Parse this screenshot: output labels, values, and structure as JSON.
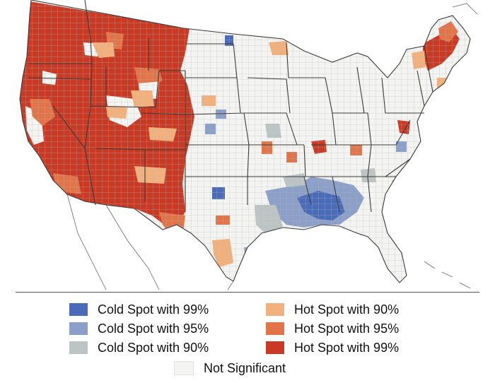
{
  "map": {
    "region": "Contiguous United States",
    "boundaries": [
      "state",
      "county"
    ],
    "land_color": "#f3f3f1",
    "border_color": "#7a7a7a"
  },
  "legend": {
    "items": [
      {
        "label": "Cold Spot with 99%",
        "color": "#4a6cb8"
      },
      {
        "label": "Cold Spot with 95%",
        "color": "#8c9fc9"
      },
      {
        "label": "Cold Spot with 90%",
        "color": "#bcc5c4"
      },
      {
        "label": "Hot Spot with 90%",
        "color": "#f2b07c"
      },
      {
        "label": "Hot Spot with 95%",
        "color": "#e2744a"
      },
      {
        "label": "Hot Spot with 99%",
        "color": "#c83a24"
      },
      {
        "label": "Not Significant",
        "color": "#f4f4f2"
      }
    ]
  },
  "regions": {
    "hot99": [
      "Washington",
      "Oregon",
      "Idaho",
      "Montana (west)",
      "California (north)",
      "Nevada",
      "Utah",
      "Arizona",
      "Colorado (west)",
      "New Mexico",
      "Wyoming (south)",
      "New Hampshire",
      "Maryland",
      "Kentucky",
      "Ohio (south)"
    ],
    "hot95": [
      "California (south)",
      "New Mexico (east)",
      "Texas (west)",
      "Vermont",
      "Maine (south)"
    ],
    "hot90": [
      "Wyoming (central)",
      "Colorado (east)",
      "Texas (north-central)",
      "Maine (north)"
    ],
    "cold": [
      "Mississippi",
      "Alabama",
      "Louisiana",
      "Arkansas",
      "Oklahoma (east)",
      "Iowa",
      "Missouri",
      "Dakotas",
      "Texas (east)"
    ]
  }
}
